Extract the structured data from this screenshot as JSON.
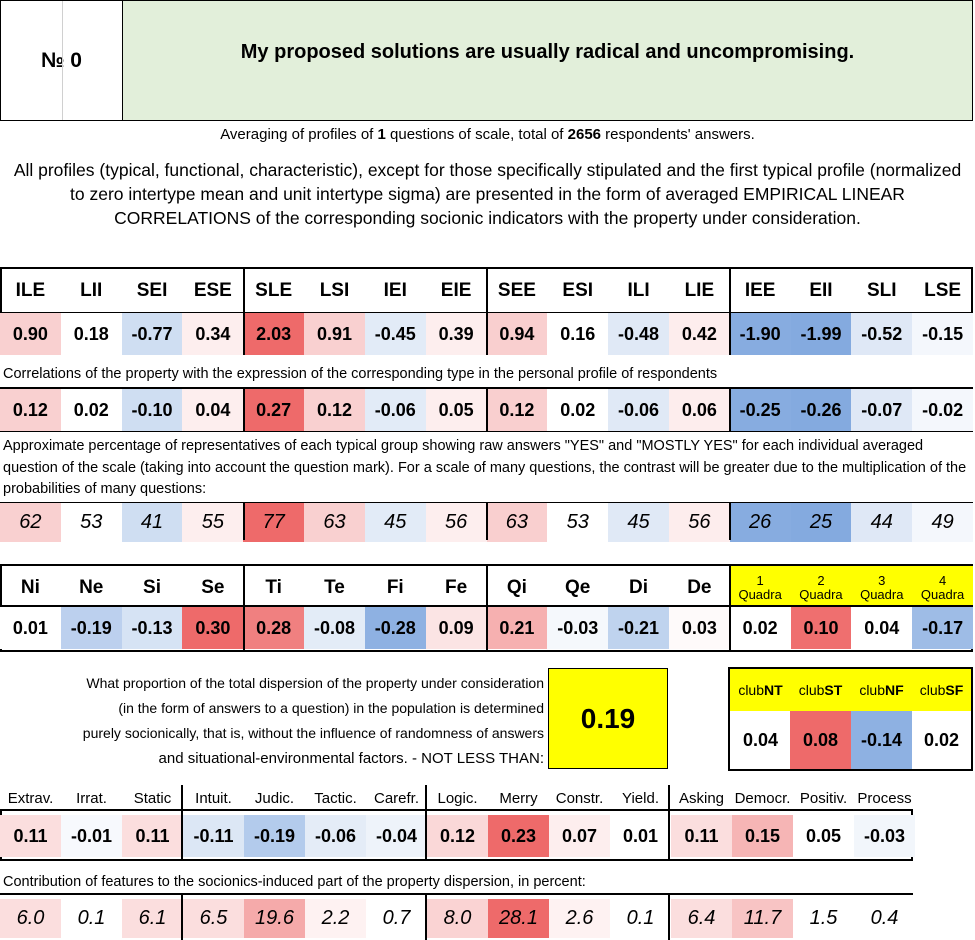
{
  "header": {
    "number_label": "№",
    "number": "0",
    "title": "My proposed solutions are usually radical and uncompromising."
  },
  "averaging": {
    "prefix": "Averaging of profiles of ",
    "questions": "1",
    "middle": " questions of scale, total of ",
    "respondents": "2656",
    "suffix": " respondents' answers."
  },
  "description": "All profiles (typical, functional, characteristic), except for those specifically stipulated and the first typical profile (normalized to zero intertype mean and unit intertype sigma) are presented in the form of averaged EMPIRICAL LINEAR CORRELATIONS of the corresponding socionic indicators with the property under consideration.",
  "types": {
    "labels": [
      "ILE",
      "LII",
      "SEI",
      "ESE",
      "SLE",
      "LSI",
      "IEI",
      "EIE",
      "SEE",
      "ESI",
      "ILI",
      "LIE",
      "IEE",
      "EII",
      "SLI",
      "LSE"
    ],
    "values": [
      "0.90",
      "0.18",
      "-0.77",
      "0.34",
      "2.03",
      "0.91",
      "-0.45",
      "0.39",
      "0.94",
      "0.16",
      "-0.48",
      "0.42",
      "-1.90",
      "-1.99",
      "-0.52",
      "-0.15"
    ],
    "colors": [
      "#f9d0d0",
      "#ffffff",
      "#cfdef2",
      "#fdeeee",
      "#ee6a6a",
      "#f9d0d0",
      "#e2ebf7",
      "#fdeeee",
      "#f9cfcf",
      "#ffffff",
      "#e0e9f6",
      "#fdeded",
      "#87ace0",
      "#84aadf",
      "#dfe8f6",
      "#f4f7fc"
    ]
  },
  "correlations_note": "Correlations of the property with the expression of the corresponding type in the personal profile of respondents",
  "correlations": {
    "values": [
      "0.12",
      "0.02",
      "-0.10",
      "0.04",
      "0.27",
      "0.12",
      "-0.06",
      "0.05",
      "0.12",
      "0.02",
      "-0.06",
      "0.06",
      "-0.25",
      "-0.26",
      "-0.07",
      "-0.02"
    ],
    "colors": [
      "#f9d0d0",
      "#ffffff",
      "#cfdef2",
      "#fdeeee",
      "#ee6a6a",
      "#f9d0d0",
      "#e2ebf7",
      "#fdeeee",
      "#f9cfcf",
      "#ffffff",
      "#e0e9f6",
      "#fdeded",
      "#87ace0",
      "#84aadf",
      "#dfe8f6",
      "#f4f7fc"
    ]
  },
  "percent_note": "Approximate percentage of representatives of each typical group showing raw answers \"YES\" and \"MOSTLY YES\" for each individual averaged question of the scale (taking into account the question mark). For a scale of many questions, the contrast will be greater due to the multiplication of the probabilities of many questions:",
  "percentages": {
    "values": [
      "62",
      "53",
      "41",
      "55",
      "77",
      "63",
      "45",
      "56",
      "63",
      "53",
      "45",
      "56",
      "26",
      "25",
      "44",
      "49"
    ],
    "colors": [
      "#f9d0d0",
      "#ffffff",
      "#cfdef2",
      "#fdeeee",
      "#ee6a6a",
      "#f9d0d0",
      "#e2ebf7",
      "#fdeeee",
      "#f9cfcf",
      "#ffffff",
      "#e0e9f6",
      "#fdeded",
      "#87ace0",
      "#84aadf",
      "#dfe8f6",
      "#f4f7fc"
    ]
  },
  "functions": {
    "labels": [
      "Ni",
      "Ne",
      "Si",
      "Se",
      "Ti",
      "Te",
      "Fi",
      "Fe",
      "Qi",
      "Qe",
      "Di",
      "De"
    ],
    "values": [
      "0.01",
      "-0.19",
      "-0.13",
      "0.30",
      "0.28",
      "-0.08",
      "-0.28",
      "0.09",
      "0.21",
      "-0.03",
      "-0.21",
      "0.03"
    ],
    "colors": [
      "#ffffff",
      "#bcd0ee",
      "#d6e3f4",
      "#ee6a6a",
      "#f08080",
      "#e3ecf7",
      "#8eb1e2",
      "#fbe4e4",
      "#f6b0b0",
      "#f5f8fc",
      "#bfd3ee",
      "#fefafa"
    ]
  },
  "quadras": {
    "numbers": [
      "1",
      "2",
      "3",
      "4"
    ],
    "label": "Quadra",
    "values": [
      "0.02",
      "0.10",
      "0.04",
      "-0.17"
    ],
    "colors": [
      "#ffffff",
      "#ef6f6f",
      "#ffffff",
      "#9ebce6"
    ]
  },
  "dispersion": {
    "lines": [
      "What proportion of the total dispersion of the property under consideration",
      "(in the form of answers to a question) in the population is determined",
      "purely socionically, that is, without the influence of randomness of answers",
      "and situational-environmental factors. - NOT LESS THAN:"
    ],
    "value": "0.19"
  },
  "clubs": {
    "prefix": "club",
    "names": [
      "NT",
      "ST",
      "NF",
      "SF"
    ],
    "values": [
      "0.04",
      "0.08",
      "-0.14",
      "0.02"
    ],
    "colors": [
      "#ffffff",
      "#ee6a6a",
      "#8eb1e2",
      "#ffffff"
    ]
  },
  "traits": {
    "labels": [
      "Extrav.",
      "Irrat.",
      "Static",
      "Intuit.",
      "Judic.",
      "Tactic.",
      "Carefr.",
      "Logic.",
      "Merry",
      "Constr.",
      "Yield.",
      "Asking",
      "Democr.",
      "Positiv.",
      "Process"
    ],
    "values": [
      "0.11",
      "-0.01",
      "0.11",
      "-0.11",
      "-0.19",
      "-0.06",
      "-0.04",
      "0.12",
      "0.23",
      "0.07",
      "0.01",
      "0.11",
      "0.15",
      "0.05",
      "-0.03"
    ],
    "colors": [
      "#fbdede",
      "#f7f9fd",
      "#fbdede",
      "#dce7f5",
      "#b3cbec",
      "#e4ecf7",
      "#eef3fa",
      "#fad8d8",
      "#ee6a6a",
      "#fdeeee",
      "#ffffff",
      "#fbdede",
      "#f6b5b5",
      "#ffffff",
      "#f2f6fb"
    ]
  },
  "contribution_note": "Contribution of features to the socionics-induced part of the property dispersion, in percent:",
  "contributions": {
    "values": [
      "6.0",
      "0.1",
      "6.1",
      "6.5",
      "19.6",
      "2.2",
      "0.7",
      "8.0",
      "28.1",
      "2.6",
      "0.1",
      "6.4",
      "11.7",
      "1.5",
      "0.4"
    ],
    "colors": [
      "#fbdede",
      "#ffffff",
      "#fbdede",
      "#fbdede",
      "#f5aaaa",
      "#fef2f2",
      "#ffffff",
      "#fad3d3",
      "#ee6a6a",
      "#fef2f2",
      "#ffffff",
      "#fbdede",
      "#f8c4c4",
      "#ffffff",
      "#ffffff"
    ]
  }
}
